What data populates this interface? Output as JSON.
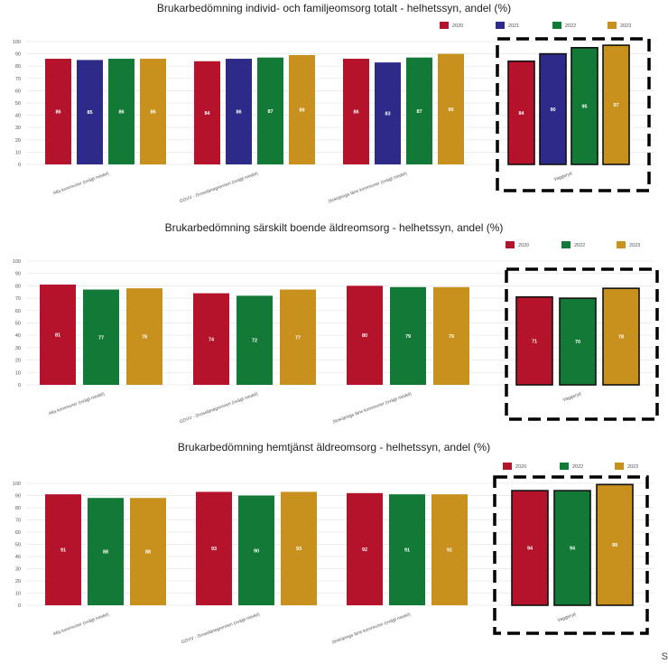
{
  "colors": {
    "2020": "#b5122b",
    "2021": "#2e2a8a",
    "2022": "#127a36",
    "2023": "#c8901c"
  },
  "corner_text": "S",
  "chart_data": [
    {
      "type": "bar",
      "title": "Brukarbedömning individ- och familjeomsorg totalt - helhetssyn, andel (%)",
      "xlabel": "",
      "ylabel": "",
      "ylim": [
        0,
        100
      ],
      "yticks": [
        0,
        10,
        20,
        30,
        40,
        50,
        60,
        70,
        80,
        90,
        100
      ],
      "grid": true,
      "legend_position": "top-right",
      "categories": [
        "Alla kommuner (ovägt medel)",
        "GGVV - Grosslänegrennen (ovägt medel)",
        "Jönköpings läns kommuner (ovägt medel)",
        "Vaggeryd"
      ],
      "series": [
        {
          "name": "2020",
          "values": [
            86,
            84,
            86,
            84
          ]
        },
        {
          "name": "2021",
          "values": [
            85,
            86,
            83,
            90
          ]
        },
        {
          "name": "2022",
          "values": [
            86,
            87,
            87,
            95
          ]
        },
        {
          "name": "2023",
          "values": [
            86,
            89,
            90,
            97
          ]
        }
      ],
      "highlight_category": "Vaggeryd"
    },
    {
      "type": "bar",
      "title": "Brukarbedömning särskilt boende äldreomsorg - helhetssyn, andel (%)",
      "xlabel": "",
      "ylabel": "",
      "ylim": [
        0,
        100
      ],
      "yticks": [
        0,
        10,
        20,
        30,
        40,
        50,
        60,
        70,
        80,
        90,
        100
      ],
      "grid": true,
      "legend_position": "top-right",
      "categories": [
        "Alla kommuner (ovägt medel)",
        "GGVV - Grosslänegrennen (ovägt medel)",
        "Jönköpings läns kommuner (ovägt medel)",
        "Vaggeryd"
      ],
      "series": [
        {
          "name": "2020",
          "values": [
            81,
            74,
            80,
            71
          ]
        },
        {
          "name": "2022",
          "values": [
            77,
            72,
            79,
            70
          ]
        },
        {
          "name": "2023",
          "values": [
            78,
            77,
            79,
            78
          ]
        }
      ],
      "highlight_category": "Vaggeryd"
    },
    {
      "type": "bar",
      "title": "Brukarbedömning hemtjänst äldreomsorg - helhetssyn, andel (%)",
      "xlabel": "",
      "ylabel": "",
      "ylim": [
        0,
        100
      ],
      "yticks": [
        0,
        10,
        20,
        30,
        40,
        50,
        60,
        70,
        80,
        90,
        100
      ],
      "grid": true,
      "legend_position": "top-right",
      "categories": [
        "Alla kommuner (ovägt medel)",
        "GGVV - Grosslänegrennen (ovägt medel)",
        "Jönköpings läns kommuner (ovägt medel)",
        "Vaggeryd"
      ],
      "series": [
        {
          "name": "2020",
          "values": [
            91,
            93,
            92,
            94
          ]
        },
        {
          "name": "2022",
          "values": [
            88,
            90,
            91,
            94
          ]
        },
        {
          "name": "2023",
          "values": [
            88,
            93,
            91,
            99
          ]
        }
      ],
      "highlight_category": "Vaggeryd"
    }
  ]
}
